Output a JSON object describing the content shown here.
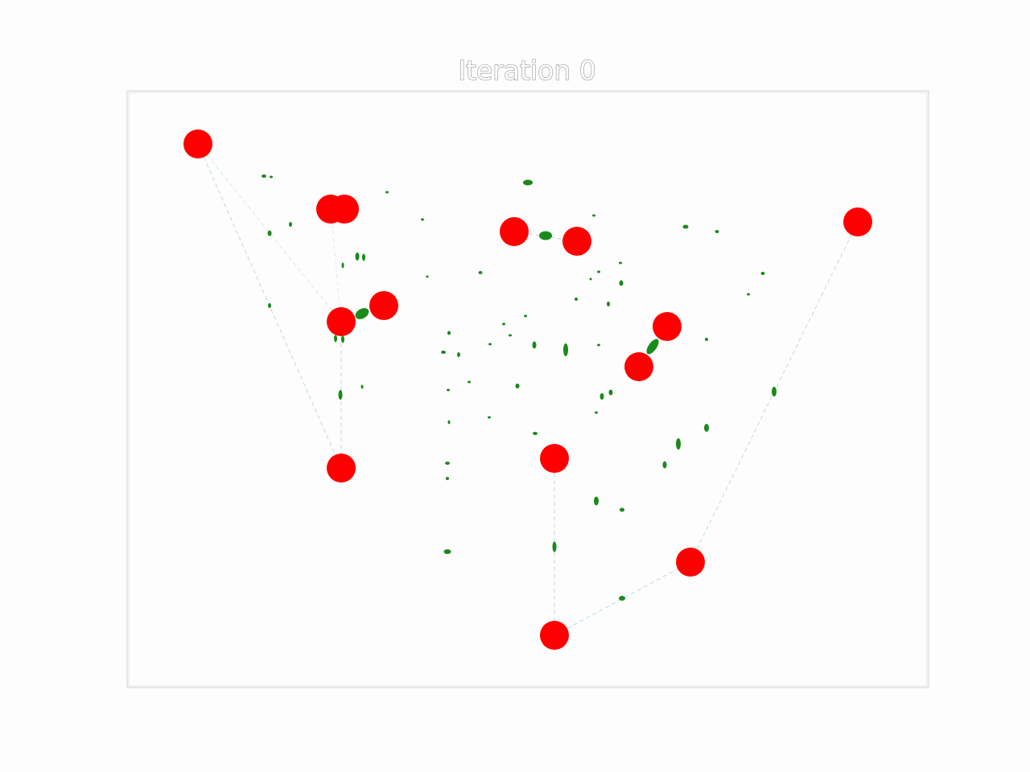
{
  "title": "Iteration 0",
  "colors": {
    "background": "#fdfdfd",
    "frame": "#cfcfcf",
    "node": "#ff0000",
    "ellipse": "#1a8a1a",
    "edge": "#b8d8ea"
  },
  "icons": {
    "node": "red-circle",
    "marker": "green-ellipse"
  },
  "description_counts": {}
}
